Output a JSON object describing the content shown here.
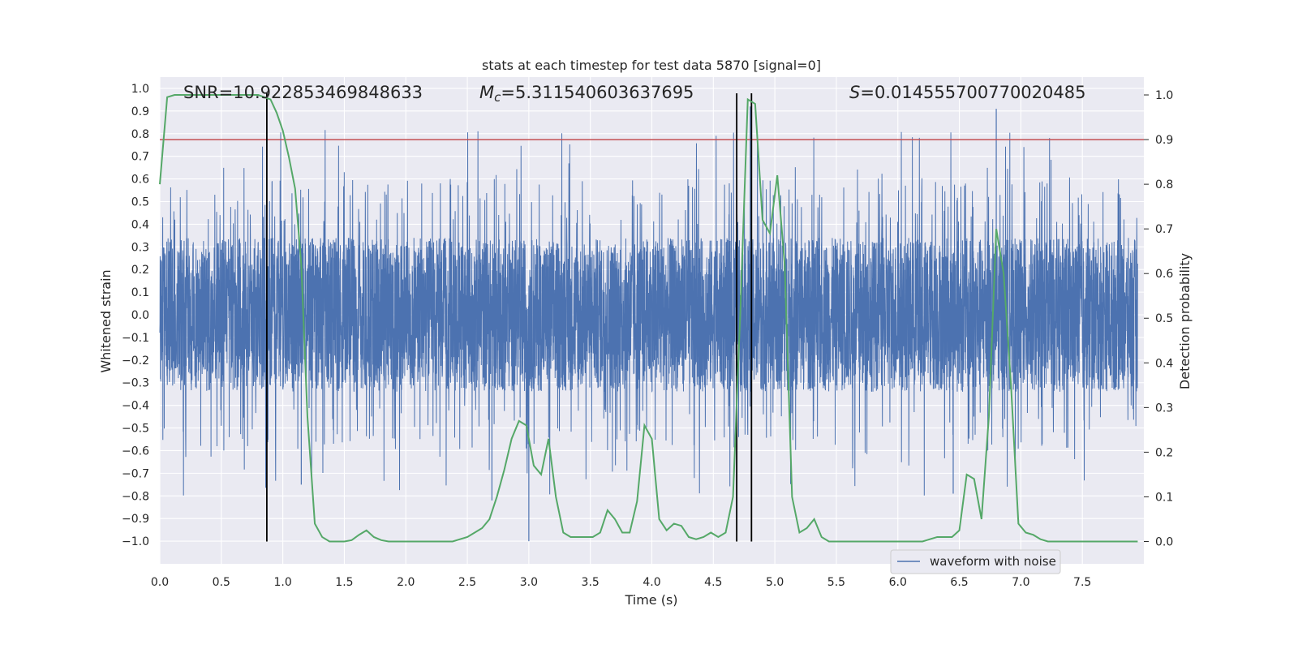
{
  "chart_data": {
    "type": "line",
    "title": "stats at each timestep for test data 5870 [signal=0]",
    "xlabel": "Time (s)",
    "ylabel_left": "Whitened strain",
    "ylabel_right": "Detection probability",
    "xlim": [
      0.0,
      8.0
    ],
    "ylim_left": [
      -1.1,
      1.05
    ],
    "ylim_right": [
      -0.05,
      1.04
    ],
    "x_ticks": [
      "0.0",
      "0.5",
      "1.0",
      "1.5",
      "2.0",
      "2.5",
      "3.0",
      "3.5",
      "4.0",
      "4.5",
      "5.0",
      "5.5",
      "6.0",
      "6.5",
      "7.0",
      "7.5"
    ],
    "y_left_ticks": [
      "1.0",
      "0.9",
      "0.8",
      "0.7",
      "0.6",
      "0.5",
      "0.4",
      "0.3",
      "0.2",
      "0.1",
      "0.0",
      "−0.1",
      "−0.2",
      "−0.3",
      "−0.4",
      "−0.5",
      "−0.6",
      "−0.7",
      "−0.8",
      "−0.9",
      "−1.0"
    ],
    "y_right_ticks": [
      "1.0",
      "0.9",
      "0.8",
      "0.7",
      "0.6",
      "0.5",
      "0.4",
      "0.3",
      "0.2",
      "0.1",
      "0.0"
    ],
    "annotations": {
      "snr": "SNR=10.922853469848633",
      "mc_symbol": "M",
      "mc_sub": "c",
      "mc_value": "=5.311540603637695",
      "s_symbol": "S",
      "s_value": "=0.014555700770020485"
    },
    "threshold": {
      "value": 0.9,
      "axis": "right",
      "color": "#c44e52"
    },
    "vlines": [
      0.87,
      4.69,
      4.81
    ],
    "legend": {
      "label": "waveform with noise",
      "placement": "lower-right"
    },
    "series": [
      {
        "name": "waveform with noise",
        "axis": "left",
        "color": "#4c72b0",
        "description": "whitened noise, 0-8 s, amplitude mostly within ±0.35 with spikes to ±0.8 and extremes near 0.92 / -1.0"
      },
      {
        "name": "detection probability",
        "axis": "right",
        "color": "#55a868",
        "x": [
          0.0,
          0.06,
          0.12,
          0.2,
          0.3,
          0.5,
          0.7,
          0.8,
          0.9,
          0.95,
          1.0,
          1.05,
          1.1,
          1.15,
          1.2,
          1.26,
          1.32,
          1.38,
          1.44,
          1.5,
          1.56,
          1.62,
          1.68,
          1.74,
          1.8,
          1.86,
          1.92,
          1.98,
          2.05,
          2.12,
          2.2,
          2.26,
          2.32,
          2.38,
          2.44,
          2.5,
          2.56,
          2.62,
          2.68,
          2.74,
          2.8,
          2.86,
          2.92,
          2.98,
          3.04,
          3.1,
          3.16,
          3.22,
          3.28,
          3.34,
          3.4,
          3.46,
          3.52,
          3.58,
          3.64,
          3.7,
          3.76,
          3.82,
          3.88,
          3.94,
          4.0,
          4.06,
          4.12,
          4.18,
          4.24,
          4.3,
          4.36,
          4.42,
          4.48,
          4.54,
          4.6,
          4.66,
          4.72,
          4.78,
          4.84,
          4.9,
          4.96,
          5.02,
          5.08,
          5.14,
          5.2,
          5.26,
          5.32,
          5.38,
          5.44,
          5.5,
          5.56,
          5.62,
          5.7,
          5.8,
          5.9,
          6.0,
          6.1,
          6.2,
          6.26,
          6.32,
          6.38,
          6.44,
          6.5,
          6.56,
          6.62,
          6.68,
          6.74,
          6.8,
          6.86,
          6.92,
          6.98,
          7.04,
          7.1,
          7.16,
          7.22,
          7.3,
          7.4,
          7.5,
          7.6,
          7.7,
          7.8,
          7.95
        ],
        "y": [
          0.8,
          0.995,
          1.0,
          1.0,
          1.0,
          1.0,
          1.0,
          1.0,
          0.99,
          0.96,
          0.92,
          0.86,
          0.79,
          0.62,
          0.28,
          0.04,
          0.01,
          0.0,
          0.0,
          0.0,
          0.003,
          0.015,
          0.025,
          0.01,
          0.003,
          0.0,
          0.0,
          0.0,
          0.0,
          0.0,
          0.0,
          0.0,
          0.0,
          0.0,
          0.005,
          0.01,
          0.02,
          0.03,
          0.05,
          0.1,
          0.16,
          0.23,
          0.27,
          0.26,
          0.17,
          0.15,
          0.23,
          0.1,
          0.02,
          0.01,
          0.01,
          0.01,
          0.01,
          0.02,
          0.07,
          0.05,
          0.02,
          0.02,
          0.09,
          0.26,
          0.23,
          0.05,
          0.025,
          0.04,
          0.035,
          0.01,
          0.005,
          0.01,
          0.02,
          0.01,
          0.02,
          0.1,
          0.52,
          0.99,
          0.98,
          0.72,
          0.69,
          0.82,
          0.62,
          0.1,
          0.02,
          0.03,
          0.05,
          0.01,
          0.0,
          0.0,
          0.0,
          0.0,
          0.0,
          0.0,
          0.0,
          0.0,
          0.0,
          0.0,
          0.005,
          0.01,
          0.01,
          0.01,
          0.025,
          0.15,
          0.14,
          0.05,
          0.28,
          0.7,
          0.6,
          0.35,
          0.04,
          0.02,
          0.015,
          0.005,
          0.0,
          0.0,
          0.0,
          0.0,
          0.0,
          0.0,
          0.0,
          0.0
        ]
      }
    ]
  }
}
